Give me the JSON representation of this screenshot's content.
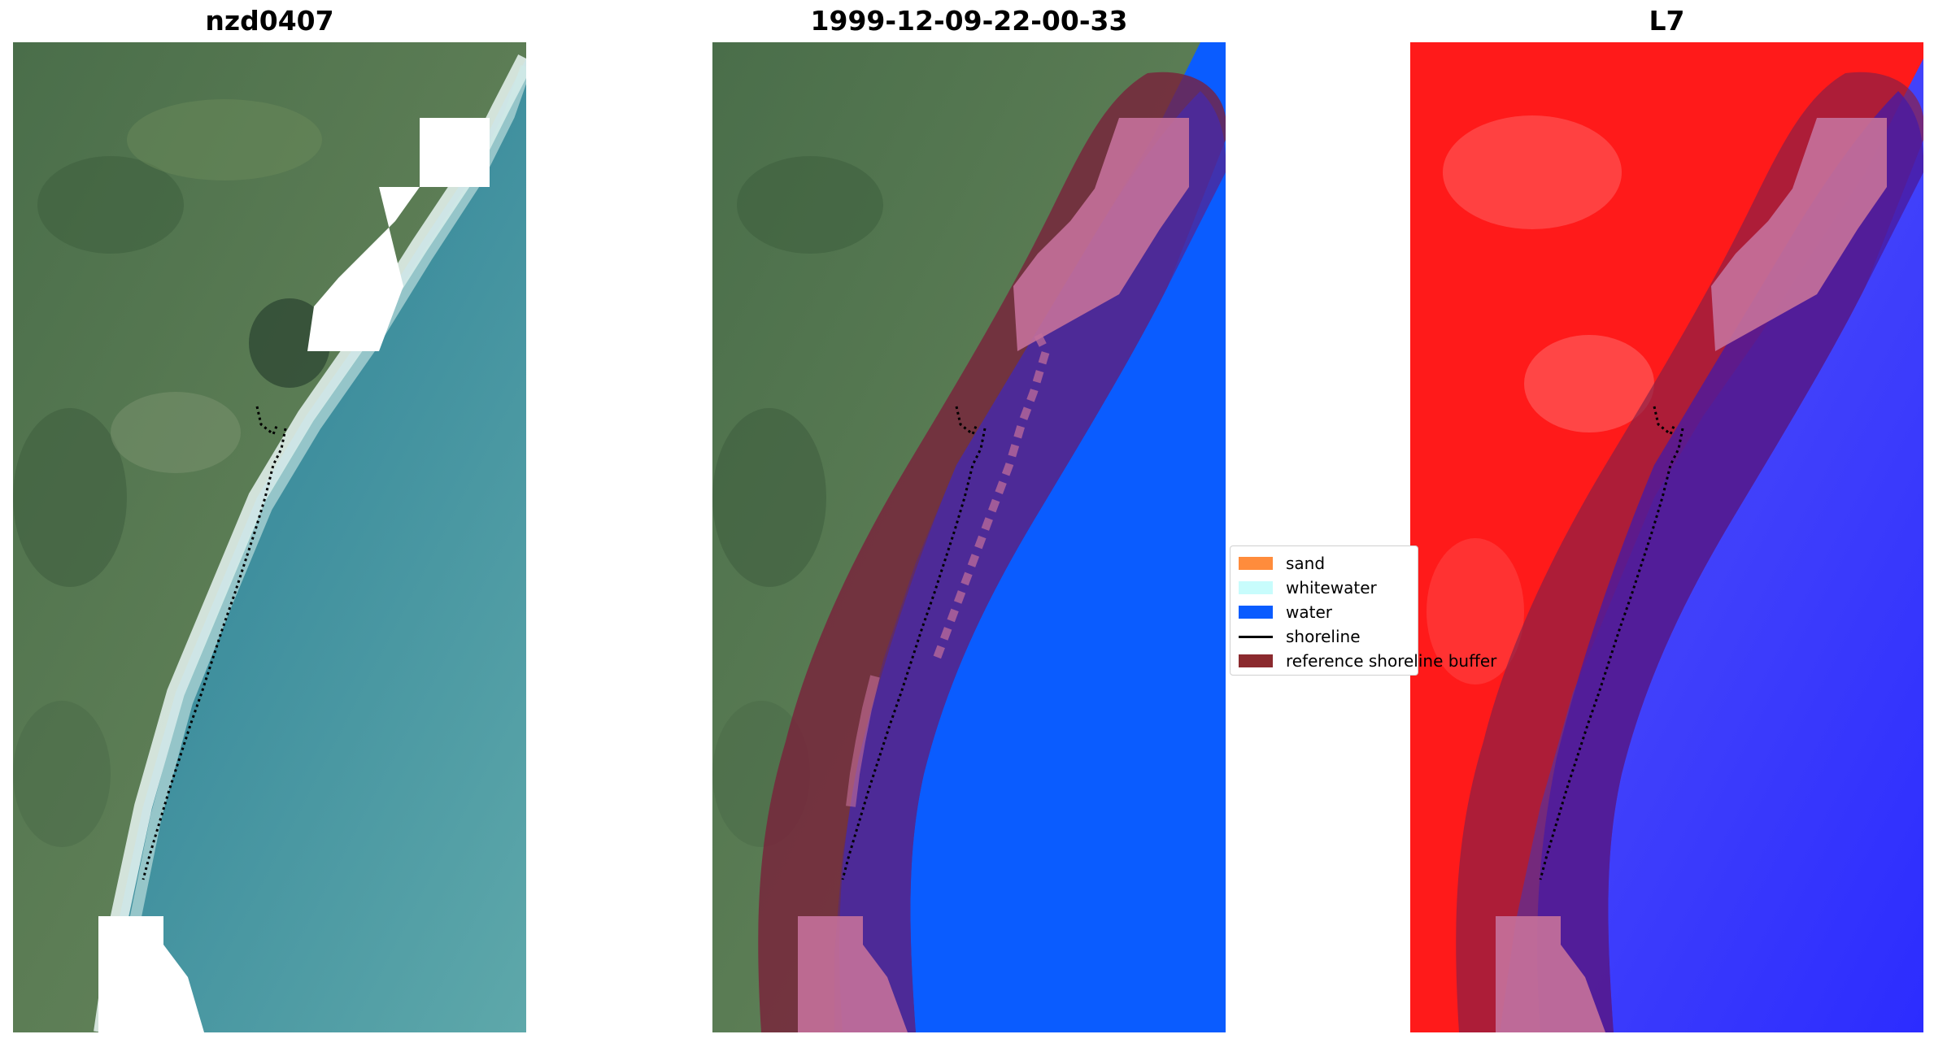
{
  "panels": [
    {
      "title": "nzd0407"
    },
    {
      "title": "1999-12-09-22-00-33"
    },
    {
      "title": "L7"
    }
  ],
  "legend": {
    "items": [
      {
        "label": "sand",
        "color": "#ff8c3c"
      },
      {
        "label": "whitewater",
        "color": "#c8fcfc"
      },
      {
        "label": "water",
        "color": "#0a5cff"
      },
      {
        "label": "shoreline",
        "color": "#000000"
      },
      {
        "label": "reference shoreline buffer",
        "color": "#8b2a2e"
      }
    ]
  }
}
